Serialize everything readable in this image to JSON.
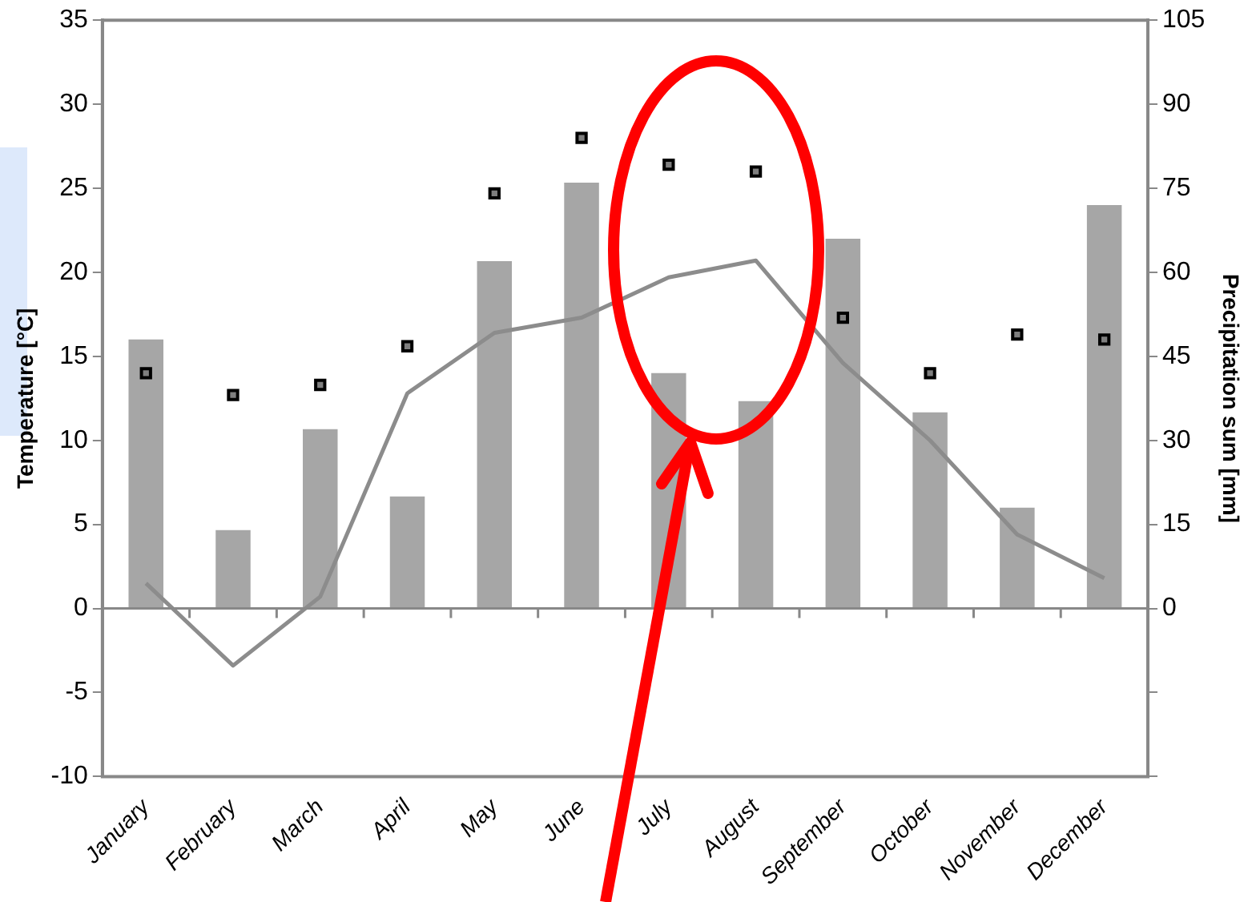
{
  "chart_data": {
    "type": "bar",
    "categories": [
      "January",
      "February",
      "March",
      "April",
      "May",
      "June",
      "July",
      "August",
      "September",
      "October",
      "November",
      "December"
    ],
    "ylabel": "Temperature [°C]",
    "y2label": "Precipitation sum [mm]",
    "ylim": [
      -10,
      35
    ],
    "yticks": [
      -10,
      -5,
      0,
      5,
      10,
      15,
      20,
      25,
      30,
      35
    ],
    "y2lim": [
      -30,
      105
    ],
    "y2ticks": [
      {
        "value": -30,
        "label": null
      },
      {
        "value": -15,
        "label": null
      },
      0,
      15,
      30,
      45,
      60,
      75,
      90,
      105
    ],
    "grid": false,
    "legend": false,
    "ref_lines": [
      {
        "axis": "y",
        "value": 0,
        "color": "#888888"
      }
    ],
    "series": [
      {
        "axis": "y2",
        "color": "#a6a6a6",
        "values": [
          48,
          14,
          32,
          20,
          62,
          76,
          42,
          37,
          66,
          35,
          18,
          72
        ]
      },
      {
        "type": "line",
        "axis": "y",
        "color": "#8c8c8c",
        "marker": "none",
        "values": [
          1.5,
          -3.4,
          0.7,
          12.8,
          16.4,
          17.3,
          19.7,
          20.7,
          14.6,
          10.0,
          4.4,
          1.8
        ]
      },
      {
        "type": "scatter",
        "axis": "y",
        "color": "#000000",
        "marker": "square",
        "values": [
          14.0,
          12.7,
          13.3,
          15.6,
          24.7,
          28.0,
          26.4,
          26.0,
          17.3,
          14.0,
          16.3,
          16.0
        ]
      }
    ]
  }
}
